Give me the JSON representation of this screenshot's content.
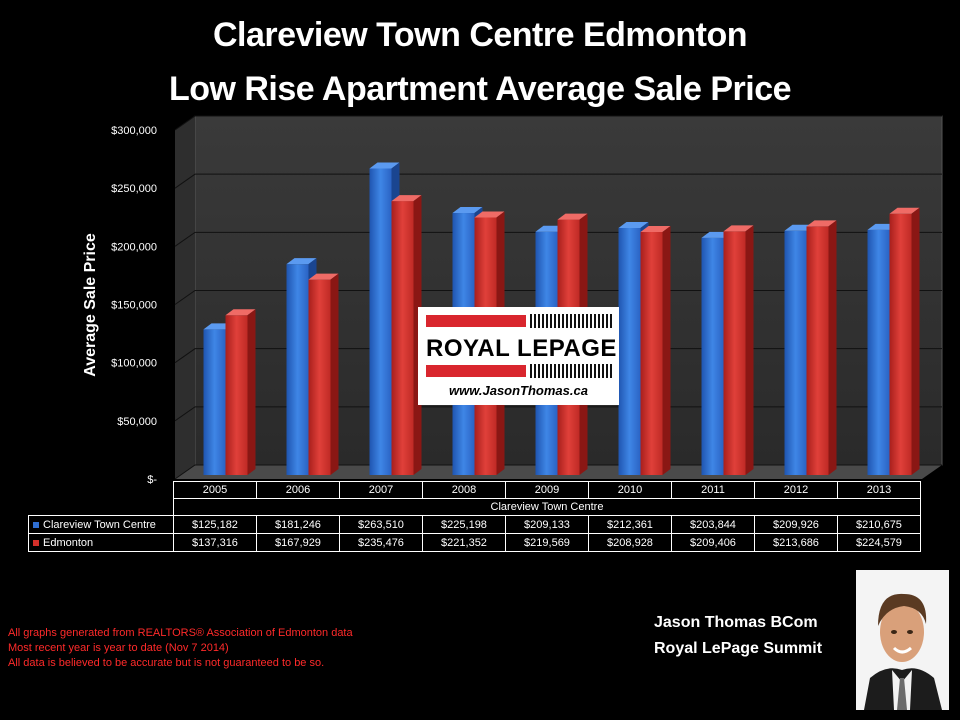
{
  "title_line1": "Clareview Town Centre Edmonton",
  "title_line2": "Low Rise Apartment Average Sale Price",
  "chart_data": {
    "type": "bar",
    "title": "Clareview Town Centre Edmonton Low Rise Apartment Average Sale Price",
    "ylabel": "Average Sale Price",
    "xlabel": "Clareview Town Centre",
    "ylim": [
      0,
      300000
    ],
    "y_ticks": [
      "$-",
      "$50,000",
      "$100,000",
      "$150,000",
      "$200,000",
      "$250,000",
      "$300,000"
    ],
    "categories": [
      "2005",
      "2006",
      "2007",
      "2008",
      "2009",
      "2010",
      "2011",
      "2012",
      "2013"
    ],
    "series": [
      {
        "name": "Clareview Town Centre",
        "color": "#2f6fd3",
        "values": [
          125182,
          181246,
          263510,
          225198,
          209133,
          212361,
          203844,
          209926,
          210675
        ],
        "labels": [
          "$125,182",
          "$181,246",
          "$263,510",
          "$225,198",
          "$209,133",
          "$212,361",
          "$203,844",
          "$209,926",
          "$210,675"
        ]
      },
      {
        "name": "Edmonton",
        "color": "#d32f2a",
        "values": [
          137316,
          167929,
          235476,
          221352,
          219569,
          208928,
          209406,
          213686,
          224579
        ],
        "labels": [
          "$137,316",
          "$167,929",
          "$235,476",
          "$221,352",
          "$219,569",
          "$208,928",
          "$209,406",
          "$213,686",
          "$224,579"
        ]
      }
    ],
    "grid": true,
    "legend": "data-table"
  },
  "logo": {
    "brand": "ROYAL LEPAGE",
    "url": "www.JasonThomas.ca"
  },
  "notes": [
    "All graphs generated from REALTORS® Association of Edmonton data",
    "Most recent year is year to date (Nov 7 2014)",
    "All data is believed to be accurate but is not guaranteed to be so."
  ],
  "signature": {
    "name": "Jason Thomas BCom",
    "company": "Royal LePage Summit"
  }
}
